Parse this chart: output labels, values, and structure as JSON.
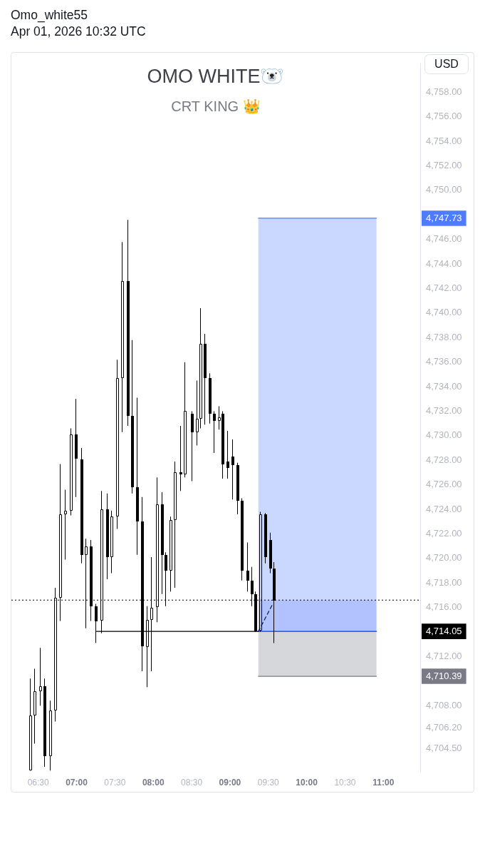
{
  "chart_data": {
    "type": "candlestick",
    "title": "OMO WHITE🐻‍❄️",
    "subtitle": "CRT KING 👑",
    "ylabel": "USD",
    "annotations": [
      "Omo_white55",
      "Apr 01, 2026 10:32 UTC"
    ],
    "xlim": [
      6.15,
      11.48
    ],
    "xticks": [
      {
        "value": 6.5,
        "label": "06:30"
      },
      {
        "value": 7,
        "label": "07:00"
      },
      {
        "value": 7.5,
        "label": "07:30"
      },
      {
        "value": 8,
        "label": "08:00"
      },
      {
        "value": 8.5,
        "label": "08:30"
      },
      {
        "value": 9,
        "label": "09:00"
      },
      {
        "value": 9.5,
        "label": "09:30"
      },
      {
        "value": 10,
        "label": "10:00"
      },
      {
        "value": 10.5,
        "label": "10:30"
      },
      {
        "value": 11,
        "label": "11:00"
      }
    ],
    "ylim": [
      4702.6,
      4760.3
    ],
    "yticks": [
      {
        "value": 4704.5,
        "label": "4,704.50"
      },
      {
        "value": 4706.2,
        "label": "4,706.20"
      },
      {
        "value": 4708,
        "label": "4,708.00"
      },
      {
        "value": 4710.39,
        "label": "4,710.39"
      },
      {
        "value": 4712,
        "label": "4,712.00"
      },
      {
        "value": 4714.05,
        "label": "4,714.05"
      },
      {
        "value": 4716,
        "label": "4,716.00"
      },
      {
        "value": 4718,
        "label": "4,718.00"
      },
      {
        "value": 4720,
        "label": "4,720.00"
      },
      {
        "value": 4722,
        "label": "4,722.00"
      },
      {
        "value": 4724,
        "label": "4,724.00"
      },
      {
        "value": 4726,
        "label": "4,726.00"
      },
      {
        "value": 4728,
        "label": "4,728.00"
      },
      {
        "value": 4730,
        "label": "4,730.00"
      },
      {
        "value": 4732,
        "label": "4,732.00"
      },
      {
        "value": 4734,
        "label": "4,734.00"
      },
      {
        "value": 4736,
        "label": "4,736.00"
      },
      {
        "value": 4738,
        "label": "4,738.00"
      },
      {
        "value": 4740,
        "label": "4,740.00"
      },
      {
        "value": 4742,
        "label": "4,742.00"
      },
      {
        "value": 4744,
        "label": "4,744.00"
      },
      {
        "value": 4746,
        "label": "4,746.00"
      },
      {
        "value": 4747.73,
        "label": "4,747.73"
      },
      {
        "value": 4750,
        "label": "4,750.00"
      },
      {
        "value": 4752,
        "label": "4,752.00"
      },
      {
        "value": 4754,
        "label": "4,754.00"
      },
      {
        "value": 4756,
        "label": "4,756.00"
      },
      {
        "value": 4758,
        "label": "4,758.00"
      }
    ],
    "ref_lines": [
      {
        "axis": "y",
        "value": 4716.6,
        "color": "#000000",
        "line_style": "dotted"
      }
    ],
    "series": [
      {
        "type": "line",
        "color": "#4f7cff",
        "x": [
          9.37,
          10.91
        ],
        "values": [
          4747.73,
          4747.73
        ],
        "lower": [
          4716.6,
          4716.6
        ],
        "upper": [
          4747.73,
          4747.73
        ]
      },
      {
        "type": "line",
        "color": "#787b86",
        "x": [
          9.37,
          10.91
        ],
        "values": [
          4710.39,
          4710.39
        ],
        "lower": [
          4710.39,
          4710.39
        ],
        "upper": [
          4714.05,
          4714.05
        ]
      },
      {
        "type": "line",
        "color": "#000000",
        "x": [
          7.26,
          9.37
        ],
        "values": [
          4714.05,
          4714.05
        ]
      },
      {
        "type": "line",
        "color": "#0034ff",
        "x": [
          9.37,
          10.91
        ],
        "values": [
          4714.05,
          4714.05
        ],
        "lower": [
          4714.05,
          4714.05
        ],
        "upper": [
          4716.6,
          4716.6
        ]
      },
      {
        "type": "line",
        "color": "#131722",
        "x": [
          9.37,
          9.55
        ],
        "values": [
          4714.05,
          4716.2
        ],
        "line_style": "dashed"
      },
      {
        "color": "#000000",
        "x": [
          6.39,
          6.45,
          6.52,
          6.58,
          6.65,
          6.72,
          6.78,
          6.85,
          6.92,
          6.99,
          7.06,
          7.12,
          7.18,
          7.25,
          7.32,
          7.39,
          7.45,
          7.52,
          7.59,
          7.66,
          7.72,
          7.78,
          7.85,
          7.91,
          7.97,
          8.04,
          8.11,
          8.16,
          8.22,
          8.28,
          8.35,
          8.41,
          8.5,
          8.56,
          8.61,
          8.67,
          8.73,
          8.79,
          8.85,
          8.9,
          8.96,
          9.03,
          9.09,
          9.15,
          9.22,
          9.28,
          9.33,
          9.39,
          9.46,
          9.52,
          9.57
        ],
        "ohlc": [
          [
            4702.7,
            4710.2,
            4702.7,
            4707.2
          ],
          [
            4707.2,
            4711.0,
            4704.9,
            4709.2
          ],
          [
            4709.2,
            4712.7,
            4708.0,
            4709.6
          ],
          [
            4709.6,
            4710.2,
            4703.0,
            4703.9
          ],
          [
            4703.9,
            4708.4,
            4702.7,
            4707.6
          ],
          [
            4707.6,
            4717.6,
            4706.7,
            4716.8
          ],
          [
            4716.8,
            4727.7,
            4714.9,
            4723.6
          ],
          [
            4723.6,
            4725.6,
            4719.9,
            4723.9
          ],
          [
            4723.9,
            4730.6,
            4723.5,
            4730.1
          ],
          [
            4730.1,
            4733.0,
            4725.0,
            4728.1
          ],
          [
            4728.1,
            4729.0,
            4719.6,
            4720.3
          ],
          [
            4720.3,
            4721.6,
            4714.3,
            4721.0
          ],
          [
            4721.0,
            4721.5,
            4714.9,
            4716.1
          ],
          [
            4716.1,
            4716.3,
            4713.1,
            4714.9
          ],
          [
            4714.9,
            4725.5,
            4713.9,
            4724.0
          ],
          [
            4724.0,
            4725.3,
            4718.3,
            4720.1
          ],
          [
            4720.1,
            4723.9,
            4718.8,
            4723.4
          ],
          [
            4723.4,
            4736.2,
            4722.4,
            4734.7
          ],
          [
            4734.7,
            4745.8,
            4730.3,
            4742.6
          ],
          [
            4742.6,
            4747.6,
            4730.8,
            4731.6
          ],
          [
            4731.6,
            4737.8,
            4725.3,
            4725.8
          ],
          [
            4725.8,
            4733.1,
            4720.3,
            4723.0
          ],
          [
            4723.0,
            4725.0,
            4710.8,
            4712.8
          ],
          [
            4712.8,
            4716.1,
            4709.5,
            4715.0
          ],
          [
            4715.0,
            4720.1,
            4710.8,
            4716.0
          ],
          [
            4716.0,
            4726.6,
            4714.8,
            4724.4
          ],
          [
            4724.4,
            4725.4,
            4717.1,
            4720.3
          ],
          [
            4720.3,
            4720.5,
            4716.1,
            4719.0
          ],
          [
            4719.0,
            4723.4,
            4717.3,
            4723.1
          ],
          [
            4723.1,
            4727.9,
            4717.6,
            4727.0
          ],
          [
            4727.0,
            4730.8,
            4725.5,
            4726.8
          ],
          [
            4726.8,
            4736.0,
            4726.6,
            4732.0
          ],
          [
            4731.8,
            4732.0,
            4726.3,
            4730.3
          ],
          [
            4730.3,
            4734.5,
            4729.2,
            4731.4
          ],
          [
            4731.4,
            4740.4,
            4730.6,
            4737.5
          ],
          [
            4737.5,
            4738.3,
            4730.9,
            4734.7
          ],
          [
            4734.7,
            4735.1,
            4731.0,
            4731.8
          ],
          [
            4731.8,
            4732.0,
            4728.6,
            4731.2
          ],
          [
            4731.2,
            4732.4,
            4730.5,
            4731.5
          ],
          [
            4731.8,
            4732.0,
            4726.5,
            4727.7
          ],
          [
            4727.9,
            4730.4,
            4726.5,
            4727.4
          ],
          [
            4728.3,
            4729.7,
            4724.8,
            4727.6
          ],
          [
            4727.6,
            4727.8,
            4723.6,
            4724.7
          ],
          [
            4724.7,
            4724.9,
            4718.2,
            4719.0
          ],
          [
            4719.0,
            4721.3,
            4717.3,
            4718.2
          ],
          [
            4718.2,
            4719.3,
            4716.1,
            4717.1
          ],
          [
            4717.1,
            4717.3,
            4714.0,
            4714.1
          ],
          [
            4714.1,
            4723.8,
            4714.0,
            4723.6
          ],
          [
            4723.6,
            4723.7,
            4719.6,
            4720.1
          ],
          [
            4721.5,
            4722.1,
            4718.8,
            4719.2
          ],
          [
            4719.2,
            4719.7,
            4713.1,
            4716.6
          ]
        ]
      }
    ]
  }
}
